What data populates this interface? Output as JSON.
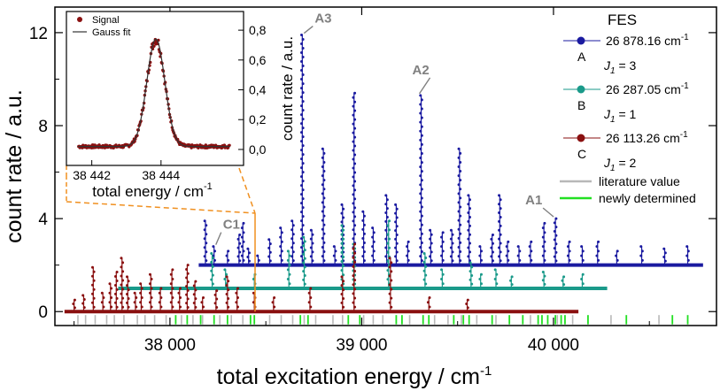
{
  "chart_data": {
    "type": "line",
    "xlabel": "total excitation energy / cm",
    "xlabel_sup": "-1",
    "ylabel": "count rate / a.u.",
    "xlim": [
      37400,
      40850
    ],
    "ylim": [
      -0.6,
      13.1
    ],
    "xticks": [
      38000,
      39000,
      40000
    ],
    "xtick_labels": [
      "38 000",
      "39 000",
      "40 000"
    ],
    "yticks": [
      0,
      4,
      8,
      12
    ],
    "ytick_labels": [
      "0",
      "4",
      "8",
      "12"
    ],
    "series": [
      {
        "key": "A",
        "color": "#1a1aa0",
        "offset": 2.0,
        "x_start": 38150,
        "x_end": 40780,
        "peaks": [
          [
            38185,
            3.9
          ],
          [
            38230,
            2.8
          ],
          [
            38300,
            2.6
          ],
          [
            38360,
            3.3
          ],
          [
            38380,
            3.8
          ],
          [
            38410,
            2.7
          ],
          [
            38460,
            2.4
          ],
          [
            38520,
            3.1
          ],
          [
            38580,
            3.6
          ],
          [
            38640,
            3.9
          ],
          [
            38690,
            11.9
          ],
          [
            38740,
            3.5
          ],
          [
            38800,
            7.0
          ],
          [
            38860,
            2.8
          ],
          [
            38900,
            4.6
          ],
          [
            38960,
            9.4
          ],
          [
            39010,
            4.3
          ],
          [
            39060,
            3.6
          ],
          [
            39130,
            5.0
          ],
          [
            39180,
            4.6
          ],
          [
            39240,
            3.0
          ],
          [
            39310,
            9.3
          ],
          [
            39360,
            3.5
          ],
          [
            39420,
            3.4
          ],
          [
            39470,
            3.5
          ],
          [
            39510,
            7.0
          ],
          [
            39560,
            5.0
          ],
          [
            39620,
            2.8
          ],
          [
            39680,
            3.3
          ],
          [
            39720,
            5.0
          ],
          [
            39760,
            3.0
          ],
          [
            39820,
            2.8
          ],
          [
            39880,
            3.0
          ],
          [
            39950,
            3.8
          ],
          [
            40010,
            4.0
          ],
          [
            40080,
            3.0
          ],
          [
            40150,
            2.8
          ],
          [
            40230,
            3.0
          ],
          [
            40330,
            2.6
          ],
          [
            40460,
            2.8
          ],
          [
            40580,
            2.7
          ],
          [
            40700,
            2.8
          ]
        ]
      },
      {
        "key": "B",
        "color": "#1a9a8a",
        "offset": 1.0,
        "x_start": 37730,
        "x_end": 40280,
        "peaks": [
          [
            38220,
            2.5
          ],
          [
            38290,
            1.8
          ],
          [
            38440,
            1.6
          ],
          [
            38620,
            2.6
          ],
          [
            38700,
            3.2
          ],
          [
            38900,
            3.7
          ],
          [
            38960,
            2.9
          ],
          [
            39140,
            3.9
          ],
          [
            39330,
            2.5
          ],
          [
            39420,
            1.8
          ],
          [
            39570,
            2.1
          ],
          [
            39620,
            1.6
          ],
          [
            39700,
            1.8
          ],
          [
            39780,
            1.5
          ],
          [
            39950,
            1.7
          ],
          [
            40050,
            1.5
          ],
          [
            40150,
            1.6
          ]
        ]
      },
      {
        "key": "C",
        "color": "#8a1010",
        "offset": 0.0,
        "x_start": 37450,
        "x_end": 40130,
        "peaks": [
          [
            37500,
            0.5
          ],
          [
            37550,
            0.7
          ],
          [
            37600,
            1.9
          ],
          [
            37650,
            0.8
          ],
          [
            37690,
            1.2
          ],
          [
            37720,
            1.7
          ],
          [
            37750,
            2.3
          ],
          [
            37780,
            1.5
          ],
          [
            37820,
            0.8
          ],
          [
            37850,
            1.2
          ],
          [
            37900,
            1.6
          ],
          [
            37950,
            1.0
          ],
          [
            38010,
            1.8
          ],
          [
            38050,
            1.0
          ],
          [
            38090,
            2.0
          ],
          [
            38130,
            1.3
          ],
          [
            38170,
            0.6
          ],
          [
            38240,
            0.9
          ],
          [
            38300,
            1.5
          ],
          [
            38350,
            1.0
          ],
          [
            38440,
            0.8
          ],
          [
            38540,
            0.6
          ],
          [
            38730,
            1.0
          ],
          [
            38900,
            1.5
          ],
          [
            38960,
            2.9
          ],
          [
            39150,
            2.3
          ],
          [
            39350,
            0.6
          ],
          [
            39550,
            0.5
          ]
        ]
      }
    ],
    "legend": {
      "title": "FES",
      "entries": [
        {
          "key": "A",
          "label": "A",
          "energy": "26 878.16 cm",
          "energy_sup": "-1",
          "j_sym": "J",
          "j_sub": "1",
          "j_val": " = 3",
          "color": "#1a1aa0"
        },
        {
          "key": "B",
          "label": "B",
          "energy": "26 287.05 cm",
          "energy_sup": "-1",
          "j_sym": "J",
          "j_sub": "1",
          "j_val": " = 1",
          "color": "#1a9a8a"
        },
        {
          "key": "C",
          "label": "C",
          "energy": "26 113.26 cm",
          "energy_sup": "-1",
          "j_sym": "J",
          "j_sub": "1",
          "j_val": " = 2",
          "color": "#8a1010"
        }
      ],
      "line_entries": [
        {
          "label": "literature value",
          "color": "#b8b8b8"
        },
        {
          "label": "newly determined",
          "color": "#22e022"
        }
      ]
    },
    "markers": {
      "literature": [
        37520,
        37560,
        37610,
        37670,
        37710,
        37760,
        37830,
        37870,
        37920,
        37980,
        38060,
        38120,
        38170,
        38260,
        38320,
        38380,
        38520,
        38580,
        38640,
        38700,
        38760,
        38850,
        38900,
        39010,
        39060,
        39110,
        39250,
        39380,
        39450,
        39520,
        39600,
        39700,
        39880,
        40020,
        40100,
        40300,
        40550
      ],
      "newly_determined": [
        38030,
        38090,
        38160,
        38230,
        38300,
        38420,
        38440,
        38680,
        38720,
        38930,
        38990,
        39180,
        39210,
        39320,
        39350,
        39480,
        39530,
        39560,
        39680,
        39770,
        39840,
        39920,
        39940,
        39970,
        40010,
        40040,
        40060,
        40180,
        40380,
        40620,
        40700
      ]
    },
    "annotations": [
      {
        "label": "A3",
        "x": 38690,
        "y": 11.9
      },
      {
        "label": "A2",
        "x": 39310,
        "y": 9.3
      },
      {
        "label": "A1",
        "x": 40010,
        "y": 4.0
      },
      {
        "label": "C1",
        "x": 38230,
        "y": 2.8
      }
    ],
    "inset": {
      "type": "scatter+line",
      "xlabel": "total energy / cm",
      "xlabel_sup": "-1",
      "ylabel": "count rate / a.u.",
      "xlim": [
        38441.6,
        38446.0
      ],
      "ylim": [
        -0.03,
        0.86
      ],
      "xticks": [
        38442,
        38444
      ],
      "xtick_labels": [
        "38 442",
        "38 444"
      ],
      "yticks": [
        0.0,
        0.2,
        0.4,
        0.6,
        0.8
      ],
      "ytick_labels": [
        "0,0",
        "0,2",
        "0,4",
        "0,6",
        "0,8"
      ],
      "gauss": {
        "center": 38443.85,
        "sigma": 0.26,
        "amplitude": 0.72,
        "baseline": 0.02
      },
      "legend": [
        {
          "label": "Signal",
          "color": "#8a1010",
          "kind": "marker"
        },
        {
          "label": "Gauss fit",
          "color": "#333333",
          "kind": "line"
        }
      ]
    },
    "zoom_link_color": "#f09020"
  }
}
